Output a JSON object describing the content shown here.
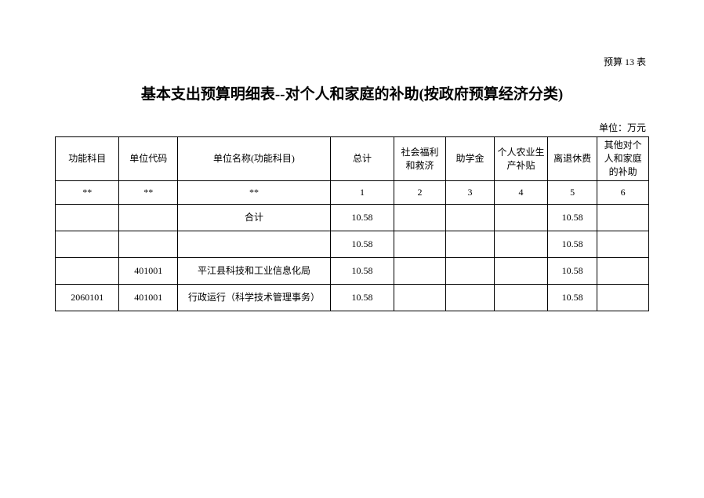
{
  "tableLabel": "预算 13 表",
  "title": "基本支出预算明细表--对个人和家庭的补助(按政府预算经济分类)",
  "unitLabel": "单位：万元",
  "headers": {
    "funcCode": "功能科目",
    "unitCode": "单位代码",
    "unitName": "单位名称(功能科目)",
    "total": "总计",
    "c1": "社会福利和救济",
    "c2": "助学金",
    "c3": "个人农业生产补贴",
    "c4": "离退休费",
    "c5": "其他对个人和家庭的补助"
  },
  "indexRow": {
    "funcCode": "**",
    "unitCode": "**",
    "unitName": "**",
    "total": "1",
    "c1": "2",
    "c2": "3",
    "c3": "4",
    "c4": "5",
    "c5": "6"
  },
  "rows": [
    {
      "funcCode": "",
      "unitCode": "",
      "unitName": "合计",
      "total": "10.58",
      "c1": "",
      "c2": "",
      "c3": "",
      "c4": "10.58",
      "c5": ""
    },
    {
      "funcCode": "",
      "unitCode": "",
      "unitName": "",
      "total": "10.58",
      "c1": "",
      "c2": "",
      "c3": "",
      "c4": "10.58",
      "c5": ""
    },
    {
      "funcCode": "",
      "unitCode": "401001",
      "unitName": "平江县科技和工业信息化局",
      "total": "10.58",
      "c1": "",
      "c2": "",
      "c3": "",
      "c4": "10.58",
      "c5": ""
    },
    {
      "funcCode": "2060101",
      "unitCode": "401001",
      "unitName": "行政运行（科学技术管理事务）",
      "total": "10.58",
      "c1": "",
      "c2": "",
      "c3": "",
      "c4": "10.58",
      "c5": ""
    }
  ]
}
